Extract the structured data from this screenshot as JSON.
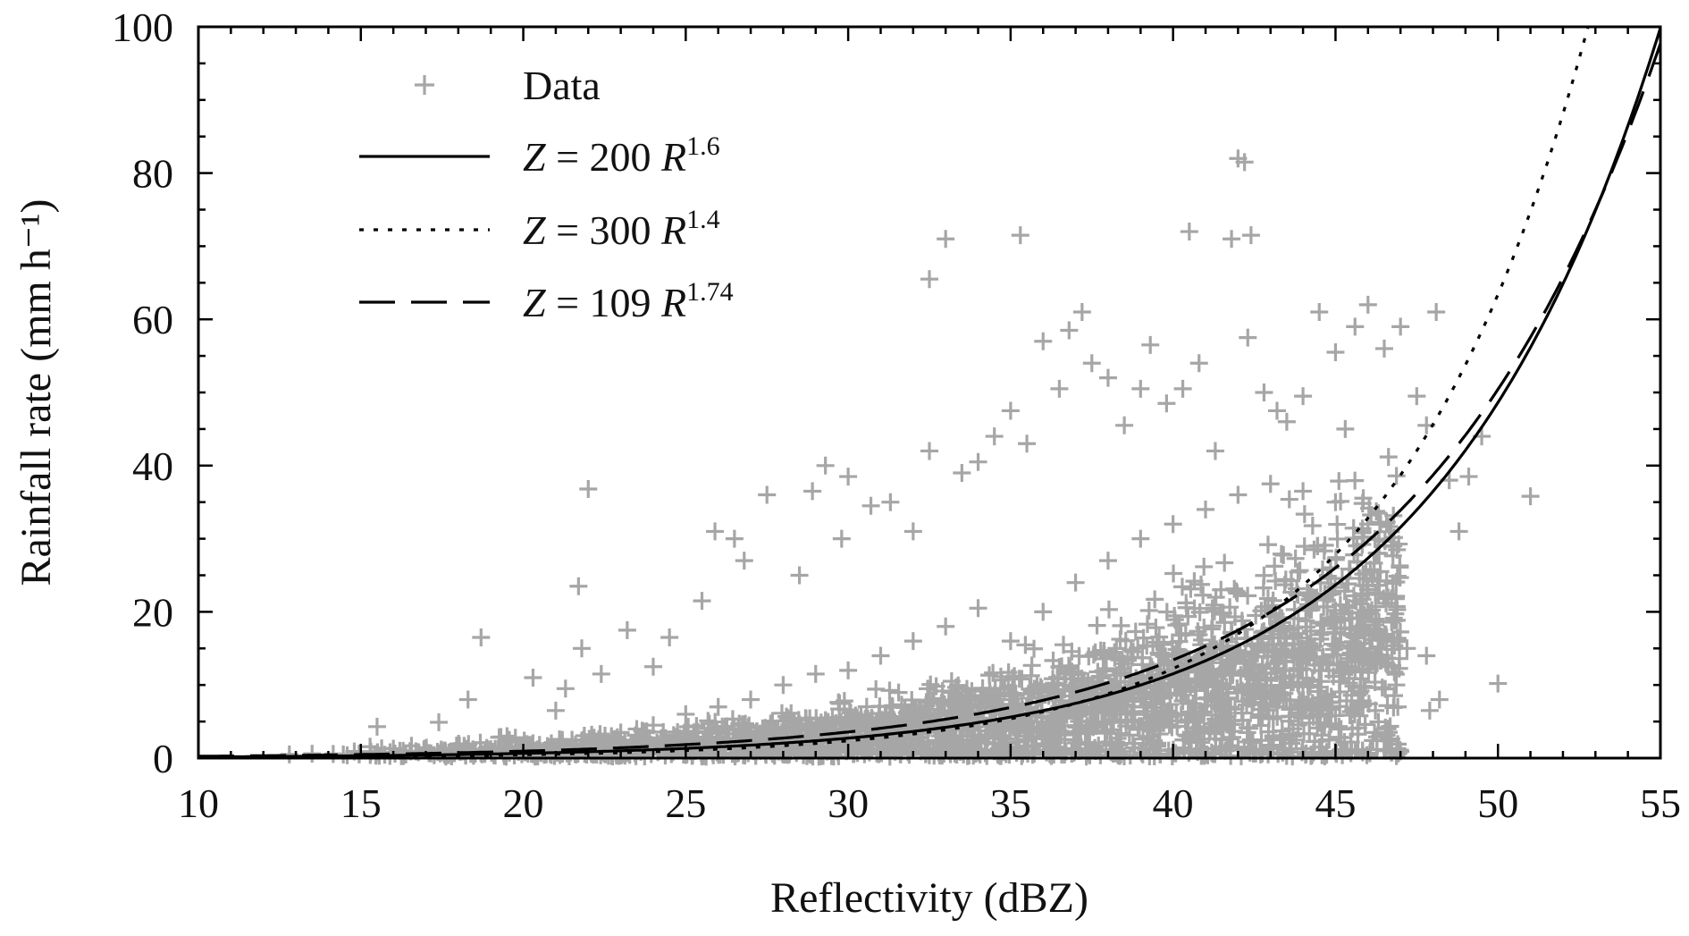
{
  "chart_data": {
    "type": "scatter",
    "xlabel": "Reflectivity (dBZ)",
    "ylabel": "Rainfall rate (mm h⁻¹)",
    "xlim": [
      10,
      55
    ],
    "ylim": [
      0,
      100
    ],
    "x_ticks": [
      10,
      15,
      20,
      25,
      30,
      35,
      40,
      45,
      50,
      55
    ],
    "y_ticks": [
      0,
      20,
      40,
      60,
      80,
      100
    ],
    "x_tick_labels": [
      "10",
      "15",
      "20",
      "25",
      "30",
      "35",
      "40",
      "45",
      "50",
      "55"
    ],
    "y_tick_labels": [
      "0",
      "20",
      "40",
      "60",
      "80",
      "100"
    ],
    "legend_position": "top-left",
    "colors": {
      "data": "#a6a6a6",
      "lines": "#000000",
      "axis": "#000000"
    },
    "series": [
      {
        "name": "Data",
        "kind": "scatter",
        "marker": "plus",
        "points": [
          [
            12.8,
            0.5
          ],
          [
            13.5,
            0.6
          ],
          [
            14.8,
            0.9
          ],
          [
            15.5,
            4.3
          ],
          [
            16.2,
            1.0
          ],
          [
            17.4,
            4.9
          ],
          [
            18.3,
            8.0
          ],
          [
            18.7,
            16.5
          ],
          [
            19.5,
            3.0
          ],
          [
            20.3,
            11.0
          ],
          [
            21.0,
            6.5
          ],
          [
            21.3,
            9.5
          ],
          [
            21.7,
            23.5
          ],
          [
            21.8,
            15.0
          ],
          [
            22.0,
            36.8
          ],
          [
            22.4,
            11.5
          ],
          [
            23.2,
            17.5
          ],
          [
            24.0,
            12.5
          ],
          [
            24.5,
            16.5
          ],
          [
            25.5,
            21.5
          ],
          [
            25.9,
            31.0
          ],
          [
            26.5,
            30.0
          ],
          [
            26.8,
            27.0
          ],
          [
            27.5,
            36.0
          ],
          [
            28.5,
            25.0
          ],
          [
            28.9,
            36.5
          ],
          [
            29.3,
            40.0
          ],
          [
            29.8,
            30.0
          ],
          [
            30.0,
            38.5
          ],
          [
            30.7,
            34.5
          ],
          [
            31.3,
            35.0
          ],
          [
            32.0,
            31.0
          ],
          [
            32.5,
            65.5
          ],
          [
            32.5,
            42.0
          ],
          [
            33.0,
            71.0
          ],
          [
            33.5,
            39.0
          ],
          [
            34.0,
            40.5
          ],
          [
            34.5,
            44.0
          ],
          [
            35.0,
            47.5
          ],
          [
            35.3,
            71.5
          ],
          [
            35.5,
            43.0
          ],
          [
            36.0,
            57.0
          ],
          [
            36.5,
            50.5
          ],
          [
            36.8,
            58.5
          ],
          [
            37.2,
            61.0
          ],
          [
            37.5,
            54.0
          ],
          [
            38.0,
            52.0
          ],
          [
            38.5,
            45.5
          ],
          [
            39.0,
            50.5
          ],
          [
            39.3,
            56.5
          ],
          [
            39.8,
            48.5
          ],
          [
            40.3,
            50.5
          ],
          [
            40.5,
            72.0
          ],
          [
            40.8,
            54.0
          ],
          [
            41.3,
            42.0
          ],
          [
            41.8,
            71.0
          ],
          [
            42.0,
            82.0
          ],
          [
            42.2,
            81.5
          ],
          [
            42.3,
            57.5
          ],
          [
            42.4,
            71.5
          ],
          [
            42.8,
            50.0
          ],
          [
            43.2,
            47.5
          ],
          [
            43.5,
            46.0
          ],
          [
            44.0,
            49.5
          ],
          [
            44.5,
            61.0
          ],
          [
            45.0,
            55.5
          ],
          [
            45.3,
            45.0
          ],
          [
            45.6,
            59.0
          ],
          [
            46.0,
            62.0
          ],
          [
            46.5,
            56.0
          ],
          [
            47.0,
            59.0
          ],
          [
            47.5,
            49.5
          ],
          [
            47.8,
            45.5
          ],
          [
            48.1,
            61.0
          ],
          [
            48.5,
            38.0
          ],
          [
            48.8,
            31.0
          ],
          [
            49.1,
            38.5
          ],
          [
            49.5,
            44.0
          ],
          [
            50.0,
            10.2
          ],
          [
            51.0,
            35.8
          ],
          [
            47.2,
            15.0
          ],
          [
            47.8,
            14.0
          ],
          [
            47.9,
            6.5
          ],
          [
            48.2,
            8.0
          ],
          [
            46.2,
            3.5
          ],
          [
            46.6,
            4.0
          ],
          [
            44.8,
            12.0
          ],
          [
            43.3,
            2.5
          ],
          [
            44.5,
            1.5
          ],
          [
            45.2,
            1.2
          ],
          [
            41.5,
            2.5
          ],
          [
            42.0,
            1.5
          ],
          [
            35.0,
            16.0
          ],
          [
            36.0,
            20.0
          ],
          [
            37.0,
            24.0
          ],
          [
            38.0,
            27.0
          ],
          [
            39.0,
            30.0
          ],
          [
            40.0,
            32.0
          ],
          [
            41.0,
            34.0
          ],
          [
            42.0,
            36.0
          ],
          [
            43.0,
            37.5
          ],
          [
            44.0,
            36.5
          ],
          [
            45.0,
            35.0
          ],
          [
            46.0,
            32.0
          ],
          [
            30.0,
            12.0
          ],
          [
            31.0,
            14.0
          ],
          [
            32.0,
            16.0
          ],
          [
            33.0,
            18.0
          ],
          [
            34.0,
            20.5
          ],
          [
            27.0,
            8.0
          ],
          [
            28.0,
            10.0
          ],
          [
            29.0,
            11.5
          ],
          [
            25.0,
            6.0
          ],
          [
            26.0,
            7.0
          ],
          [
            23.0,
            3.5
          ],
          [
            24.0,
            4.5
          ],
          [
            20.5,
            1.8
          ],
          [
            21.5,
            2.5
          ],
          [
            19.0,
            1.2
          ],
          [
            17.5,
            0.8
          ]
        ]
      },
      {
        "name": "Z = 200 R^1.6",
        "kind": "line",
        "dash": "solid",
        "a": 200,
        "b": 1.6
      },
      {
        "name": "Z = 300 R^1.4",
        "kind": "line",
        "dash": "dotted",
        "a": 300,
        "b": 1.4
      },
      {
        "name": "Z = 109 R^1.74",
        "kind": "line",
        "dash": "dashed",
        "a": 109,
        "b": 1.74
      }
    ],
    "legend": [
      {
        "label_prefix": "Data"
      },
      {
        "label_prefix": "Z",
        "label_mid": " = 200 ",
        "label_var": "R",
        "label_exp": "1.6"
      },
      {
        "label_prefix": "Z",
        "label_mid": " = 300 ",
        "label_var": "R",
        "label_exp": "1.4"
      },
      {
        "label_prefix": "Z",
        "label_mid": " = 109 ",
        "label_var": "R",
        "label_exp": "1.74"
      }
    ]
  }
}
